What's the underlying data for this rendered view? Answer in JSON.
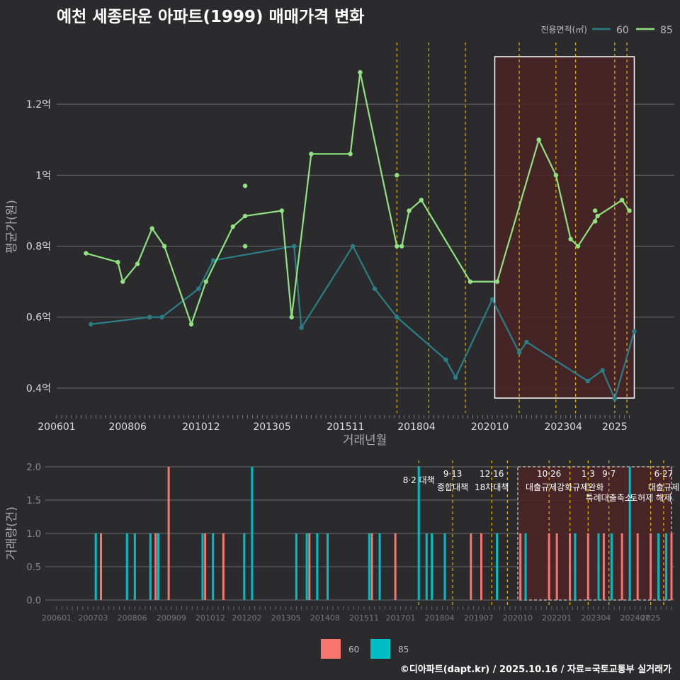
{
  "title": "예천 세종타운 아파트(1999) 매매가격 변화",
  "footer": "©디아파트(dapt.kr) / 2025.10.16 / 자료=국토교통부 실거래가",
  "colors": {
    "background": "#2b2b2d",
    "series_60_line": "#2a7f86",
    "series_85_line": "#8fe27f",
    "vol_60": "#f8766d",
    "vol_85": "#00bfc4",
    "policy_line": "#e6b800",
    "highlight_fill": "#4a2326",
    "grid": "#6b6b6b"
  },
  "chart_data": [
    {
      "type": "line",
      "title": "예천 세종타운 아파트(1999) 매매가격 변화",
      "xlabel": "거래년월",
      "ylabel": "평균가(원)",
      "legend_title": "전용면적(㎡)",
      "legend_position": "top-right",
      "x_ticks": [
        "200601",
        "200806",
        "201012",
        "201305",
        "201511",
        "201804",
        "202010",
        "202304",
        "2025"
      ],
      "y_ticks": [
        {
          "value": 0.4,
          "label": "0.4억"
        },
        {
          "value": 0.6,
          "label": "0.6억"
        },
        {
          "value": 0.8,
          "label": "0.8억"
        },
        {
          "value": 1.0,
          "label": "1억"
        },
        {
          "value": 1.2,
          "label": "1.2억"
        }
      ],
      "ylim": [
        0.33,
        1.38
      ],
      "x_range": [
        "2006-01",
        "2025-08"
      ],
      "highlight_range": [
        "2020-12",
        "2025-09"
      ],
      "policy_dates": [
        "2017-08",
        "2018-09",
        "2019-12",
        "2021-10",
        "2023-01",
        "2023-09",
        "2025-01",
        "2025-06"
      ],
      "series": [
        {
          "name": "60",
          "points": [
            {
              "x": "2007-03",
              "y": 0.58
            },
            {
              "x": "2009-03",
              "y": 0.6
            },
            {
              "x": "2009-08",
              "y": 0.6
            },
            {
              "x": "2010-11",
              "y": 0.68
            },
            {
              "x": "2011-05",
              "y": 0.76
            },
            {
              "x": "2014-02",
              "y": 0.8
            },
            {
              "x": "2014-05",
              "y": 0.57
            },
            {
              "x": "2016-02",
              "y": 0.8
            },
            {
              "x": "2016-11",
              "y": 0.68
            },
            {
              "x": "2017-08",
              "y": 0.6
            },
            {
              "x": "2019-04",
              "y": 0.48
            },
            {
              "x": "2019-08",
              "y": 0.43
            },
            {
              "x": "2020-11",
              "y": 0.65
            },
            {
              "x": "2021-10",
              "y": 0.5
            },
            {
              "x": "2022-01",
              "y": 0.53
            },
            {
              "x": "2024-02",
              "y": 0.42
            },
            {
              "x": "2024-08",
              "y": 0.45
            },
            {
              "x": "2025-01",
              "y": 0.37
            },
            {
              "x": "2025-09",
              "y": 0.56
            }
          ]
        },
        {
          "name": "85",
          "points": [
            {
              "x": "2007-01",
              "y": 0.78
            },
            {
              "x": "2008-02",
              "y": 0.755
            },
            {
              "x": "2008-04",
              "y": 0.7
            },
            {
              "x": "2008-10",
              "y": 0.75
            },
            {
              "x": "2009-04",
              "y": 0.85
            },
            {
              "x": "2009-09",
              "y": 0.8
            },
            {
              "x": "2010-08",
              "y": 0.58
            },
            {
              "x": "2011-02",
              "y": 0.7
            },
            {
              "x": "2012-01",
              "y": 0.855
            },
            {
              "x": "2012-06",
              "y": 0.885
            },
            {
              "x": "2013-09",
              "y": 0.9
            },
            {
              "x": "2014-01",
              "y": 0.6
            },
            {
              "x": "2014-09",
              "y": 1.06
            },
            {
              "x": "2016-01",
              "y": 1.06
            },
            {
              "x": "2016-05",
              "y": 1.29
            },
            {
              "x": "2017-08",
              "y": 0.8
            },
            {
              "x": "2017-10",
              "y": 0.8
            },
            {
              "x": "2018-01",
              "y": 0.9
            },
            {
              "x": "2018-06",
              "y": 0.93
            },
            {
              "x": "2020-02",
              "y": 0.7
            },
            {
              "x": "2021-01",
              "y": 0.7
            },
            {
              "x": "2022-06",
              "y": 1.1
            },
            {
              "x": "2023-01",
              "y": 1.0
            },
            {
              "x": "2023-07",
              "y": 0.82
            },
            {
              "x": "2023-10",
              "y": 0.8
            },
            {
              "x": "2024-06",
              "y": 0.885
            },
            {
              "x": "2025-04",
              "y": 0.93
            },
            {
              "x": "2025-07",
              "y": 0.9
            }
          ],
          "extra_points": [
            {
              "x": "2012-06",
              "y": 0.97
            },
            {
              "x": "2012-06",
              "y": 0.8
            },
            {
              "x": "2017-08",
              "y": 1.0
            },
            {
              "x": "2024-05",
              "y": 0.9
            },
            {
              "x": "2024-05",
              "y": 0.87
            }
          ]
        }
      ]
    },
    {
      "type": "bar",
      "ylabel": "거래량(건)",
      "x_ticks": [
        "200601",
        "200703",
        "200806",
        "200909",
        "201012",
        "201202",
        "201305",
        "201408",
        "201511",
        "201701",
        "201804",
        "201907",
        "202010",
        "202201",
        "202304",
        "202407",
        "2025"
      ],
      "y_ticks": [
        {
          "value": 0.0,
          "label": "0.0"
        },
        {
          "value": 0.5,
          "label": "0.5"
        },
        {
          "value": 1.0,
          "label": "1.0"
        },
        {
          "value": 1.5,
          "label": "1.5"
        },
        {
          "value": 2.0,
          "label": "2.0"
        }
      ],
      "ylim": [
        0,
        2.0
      ],
      "highlight_range": [
        "2020-10",
        "2025-09"
      ],
      "policy_events": [
        {
          "date": "2017-08",
          "label": "8·2 대책",
          "sub": ""
        },
        {
          "date": "2018-09",
          "label": "9·13",
          "sub": "종합대책"
        },
        {
          "date": "2019-12",
          "label": "12·16",
          "sub": "18차대책"
        },
        {
          "date": "2020-06",
          "label": "",
          "sub": ""
        },
        {
          "date": "2021-10",
          "label": "10·26",
          "sub": "대출규제강화"
        },
        {
          "date": "2022-06",
          "label": "",
          "sub": ""
        },
        {
          "date": "2023-01",
          "label": "1·3",
          "sub": "규제완화"
        },
        {
          "date": "2023-09",
          "label": "9·7",
          "sub": "특례대출축소"
        },
        {
          "date": "2025-01",
          "label": "",
          "sub": "토허제 해제"
        },
        {
          "date": "2025-06",
          "label": "6·27",
          "sub": "대출규제"
        }
      ],
      "series": [
        {
          "name": "60",
          "bars": [
            {
              "x": "2007-06",
              "y": 1
            },
            {
              "x": "2009-03",
              "y": 1
            },
            {
              "x": "2009-08",
              "y": 2
            },
            {
              "x": "2010-10",
              "y": 1
            },
            {
              "x": "2011-05",
              "y": 1
            },
            {
              "x": "2014-02",
              "y": 1
            },
            {
              "x": "2016-02",
              "y": 1
            },
            {
              "x": "2016-11",
              "y": 1
            },
            {
              "x": "2019-04",
              "y": 1
            },
            {
              "x": "2019-08",
              "y": 1
            },
            {
              "x": "2020-11",
              "y": 1
            },
            {
              "x": "2021-10",
              "y": 1
            },
            {
              "x": "2022-01",
              "y": 1
            },
            {
              "x": "2022-06",
              "y": 1
            },
            {
              "x": "2023-01",
              "y": 1
            },
            {
              "x": "2023-07",
              "y": 1
            },
            {
              "x": "2024-02",
              "y": 1
            },
            {
              "x": "2024-08",
              "y": 1
            },
            {
              "x": "2025-01",
              "y": 1
            },
            {
              "x": "2025-09",
              "y": 1
            }
          ]
        },
        {
          "name": "85",
          "bars": [
            {
              "x": "2007-04",
              "y": 1
            },
            {
              "x": "2008-04",
              "y": 1
            },
            {
              "x": "2008-07",
              "y": 1
            },
            {
              "x": "2009-01",
              "y": 1
            },
            {
              "x": "2009-04",
              "y": 1
            },
            {
              "x": "2010-09",
              "y": 1
            },
            {
              "x": "2011-01",
              "y": 1
            },
            {
              "x": "2012-01",
              "y": 1
            },
            {
              "x": "2012-04",
              "y": 2
            },
            {
              "x": "2013-09",
              "y": 1
            },
            {
              "x": "2014-01",
              "y": 1
            },
            {
              "x": "2014-05",
              "y": 1
            },
            {
              "x": "2014-09",
              "y": 1
            },
            {
              "x": "2016-01",
              "y": 1
            },
            {
              "x": "2016-05",
              "y": 1
            },
            {
              "x": "2017-08",
              "y": 2
            },
            {
              "x": "2017-11",
              "y": 1
            },
            {
              "x": "2018-01",
              "y": 1
            },
            {
              "x": "2018-06",
              "y": 1
            },
            {
              "x": "2020-02",
              "y": 1
            },
            {
              "x": "2021-01",
              "y": 1
            },
            {
              "x": "2022-08",
              "y": 1
            },
            {
              "x": "2023-05",
              "y": 1
            },
            {
              "x": "2023-10",
              "y": 1
            },
            {
              "x": "2024-05",
              "y": 2
            },
            {
              "x": "2025-04",
              "y": 1
            },
            {
              "x": "2025-07",
              "y": 1
            }
          ]
        }
      ]
    }
  ],
  "legend_bottom": [
    {
      "name": "60",
      "color": "#f8766d"
    },
    {
      "name": "85",
      "color": "#00bfc4"
    }
  ]
}
